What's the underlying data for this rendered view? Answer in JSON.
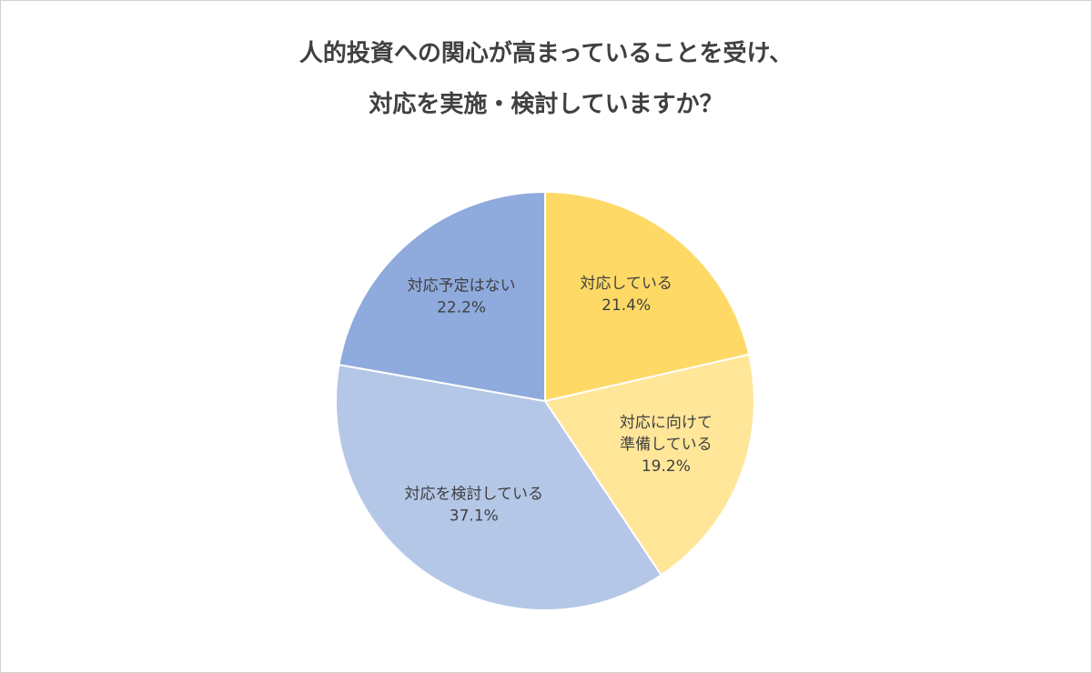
{
  "chart_data": {
    "type": "pie",
    "title": "人的投資への関心が高まっていることを受け、\n対応を実施・検討していますか？",
    "categories": [
      "対応している",
      "対応に向けて\n準備している",
      "対応を検討している",
      "対応予定はない"
    ],
    "values": [
      21.4,
      19.2,
      37.1,
      22.2
    ],
    "value_labels": [
      "21.4%",
      "19.2%",
      "37.1%",
      "22.2%"
    ],
    "colors": [
      "#fed966",
      "#ffe699",
      "#b4c7e7",
      "#8faadc"
    ]
  }
}
